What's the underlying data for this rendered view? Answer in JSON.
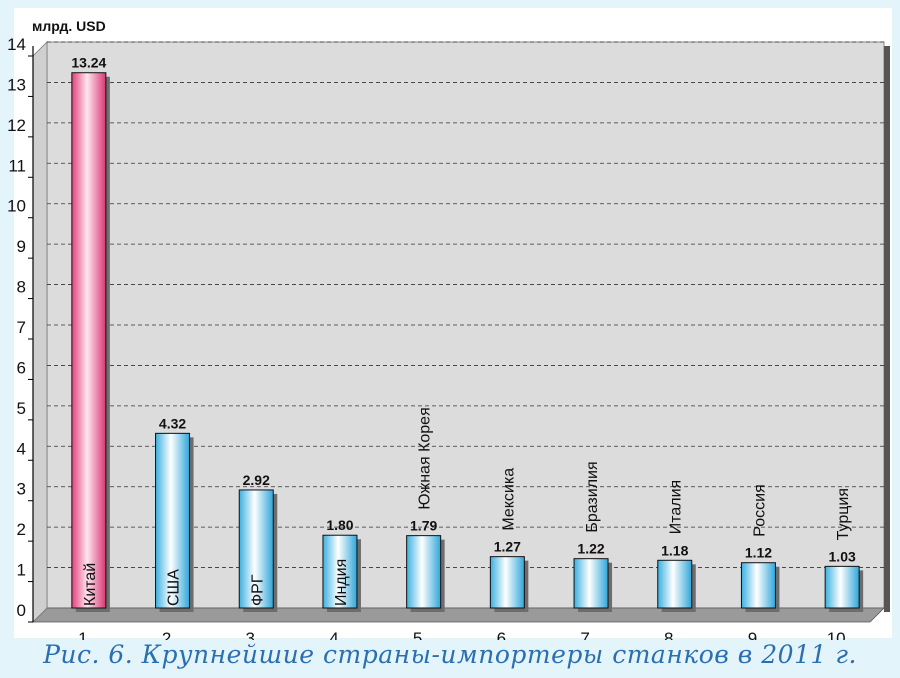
{
  "chart_data": {
    "type": "bar",
    "unit_label": "млрд. USD",
    "caption": "Рис. 6. Крупнейшие страны-импортеры станков в 2011 г.",
    "categories": [
      "1",
      "2",
      "3",
      "4",
      "5",
      "6",
      "7",
      "8",
      "9",
      "10"
    ],
    "bar_labels": [
      "Китай",
      "США",
      "ФРГ",
      "Индия",
      "Южная Корея",
      "Мексика",
      "Бразилия",
      "Италия",
      "Россия",
      "Турция"
    ],
    "values": [
      13.24,
      4.32,
      2.92,
      1.8,
      1.79,
      1.27,
      1.22,
      1.18,
      1.12,
      1.03
    ],
    "value_labels": [
      "13.24",
      "4.32",
      "2.92",
      "1.80",
      "1.79",
      "1.27",
      "1.22",
      "1.18",
      "1.12",
      "1.03"
    ],
    "ylim": [
      0,
      14
    ],
    "yticks": [
      0,
      1,
      2,
      3,
      4,
      5,
      6,
      7,
      8,
      9,
      10,
      11,
      12,
      13,
      14
    ],
    "grid": true,
    "colors": {
      "highlight_bar": "#e2407c",
      "bar": "#3cb4e4",
      "plot_background": "#dcdcdc",
      "caption": "#2a6fb0",
      "page_background": "#e4f4fb"
    },
    "highlight_index": 0
  }
}
